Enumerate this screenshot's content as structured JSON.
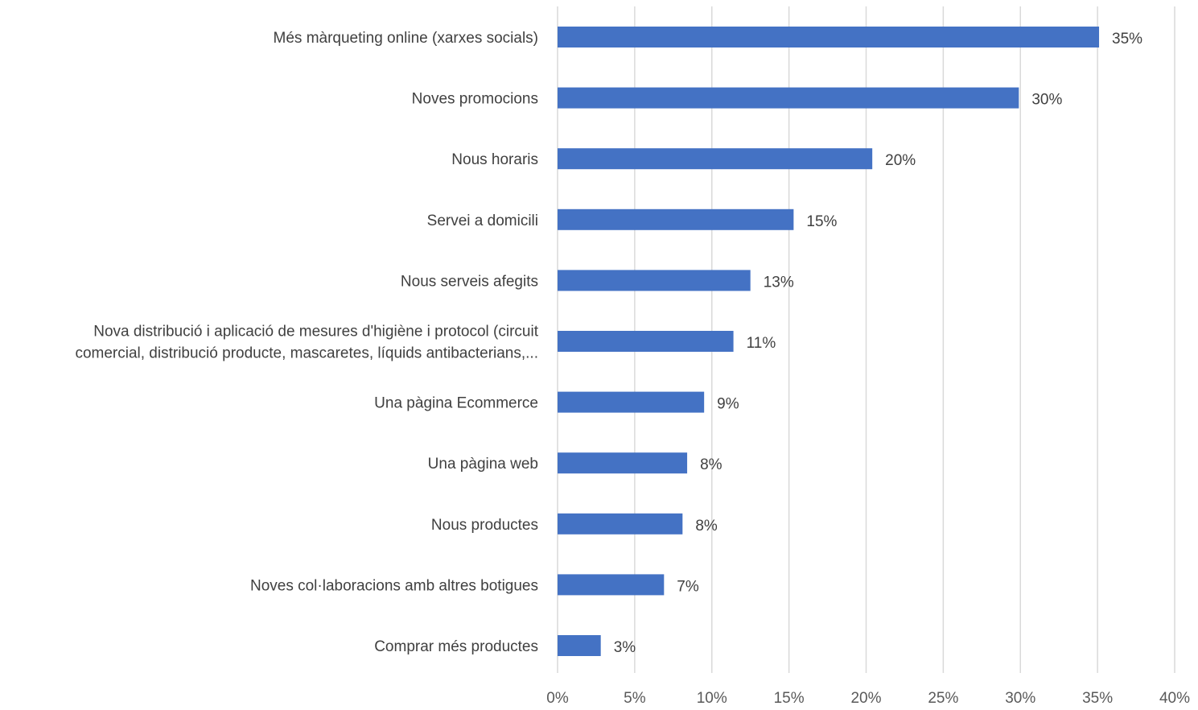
{
  "chart_data": {
    "type": "bar",
    "orientation": "horizontal",
    "title": "",
    "xlabel": "",
    "ylabel": "",
    "categories": [
      [
        "Més màrqueting online (xarxes socials)"
      ],
      [
        "Noves promocions"
      ],
      [
        "Nous horaris"
      ],
      [
        "Servei a domicili"
      ],
      [
        "Nous serveis afegits"
      ],
      [
        "Nova distribució i aplicació de mesures d'higiène i protocol (circuit",
        "comercial, distribució producte, mascaretes, líquids antibacterians,..."
      ],
      [
        "Una pàgina Ecommerce"
      ],
      [
        "Una pàgina web"
      ],
      [
        "Nous productes"
      ],
      [
        "Noves col·laboracions amb altres botigues"
      ],
      [
        "Comprar més productes"
      ]
    ],
    "values": [
      35,
      30,
      20,
      15,
      13,
      11,
      9,
      8,
      8,
      7,
      3
    ],
    "exact_values": [
      35.1,
      29.9,
      20.4,
      15.3,
      12.5,
      11.4,
      9.5,
      8.4,
      8.1,
      6.9,
      2.8
    ],
    "value_labels": [
      "35%",
      "30%",
      "20%",
      "15%",
      "13%",
      "11%",
      "9%",
      "8%",
      "8%",
      "7%",
      "3%"
    ],
    "xlim": [
      0,
      40
    ],
    "ticks": [
      0,
      5,
      10,
      15,
      20,
      25,
      30,
      35,
      40
    ],
    "tick_labels": [
      "0%",
      "5%",
      "10%",
      "15%",
      "20%",
      "25%",
      "30%",
      "35%",
      "40%"
    ],
    "grid": true,
    "legend": "none",
    "bar_color": "#4472c4"
  }
}
